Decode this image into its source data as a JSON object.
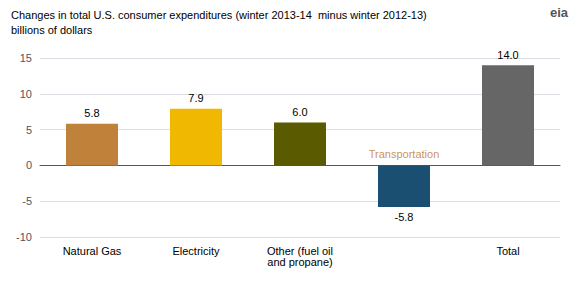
{
  "chart_data": {
    "type": "bar",
    "title": "Changes in total U.S. consumer expenditures (winter 2013-14  minus winter 2012-13)",
    "subtitle": "billions of dollars",
    "categories": [
      "Natural Gas",
      "Electricity",
      "Other (fuel oil\nand propane)",
      null,
      "Total"
    ],
    "values": [
      5.8,
      7.9,
      6.0,
      -5.8,
      14.0
    ],
    "value_labels": [
      "5.8",
      "7.9",
      "6.0",
      "-5.8",
      "14.0"
    ],
    "data_labels": true,
    "colors": [
      "#c0813a",
      "#f0b800",
      "#5a5a00",
      "#1b4f72",
      "#666666"
    ],
    "ylim": [
      -10,
      15
    ],
    "yticks": [
      -10,
      -5,
      0,
      5,
      10,
      15
    ],
    "grid": true,
    "annotations": [
      {
        "text": "Transportation",
        "x": 3,
        "y": 0.5,
        "color": "#c0742a"
      },
      {
        "text": "eia",
        "color": "#555555"
      }
    ]
  }
}
